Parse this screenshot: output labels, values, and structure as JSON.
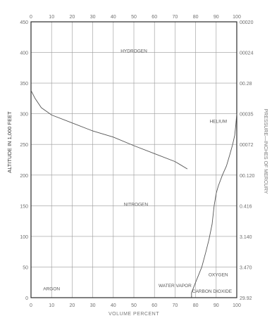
{
  "chart_data": {
    "type": "line",
    "xlabel": "VOLUME PERCENT",
    "ylabel": "ALTITUDE IN 1,000 FEET",
    "y2label": "PRESSURE—INCHES OF MERCURY",
    "xlim": [
      0,
      100
    ],
    "ylim": [
      0,
      450
    ],
    "x_ticks": [
      0,
      10,
      20,
      30,
      40,
      50,
      60,
      70,
      80,
      90,
      100
    ],
    "x_ticks_top": [
      0,
      10,
      20,
      30,
      40,
      50,
      60,
      70,
      80,
      90,
      100
    ],
    "y_ticks": [
      0,
      50,
      100,
      150,
      200,
      250,
      300,
      350,
      400,
      450
    ],
    "pressure_ticks": [
      {
        "altitude": 0,
        "label": "29.92"
      },
      {
        "altitude": 50,
        "label": "3.470"
      },
      {
        "altitude": 100,
        "label": "3.140"
      },
      {
        "altitude": 150,
        "label": "0.416"
      },
      {
        "altitude": 200,
        "label": "00.120"
      },
      {
        "altitude": 250,
        "label": "00072"
      },
      {
        "altitude": 300,
        "label": "00035"
      },
      {
        "altitude": 350,
        "label": "00.28"
      },
      {
        "altitude": 400,
        "label": "00024"
      },
      {
        "altitude": 450,
        "label": "00020"
      }
    ],
    "region_labels": [
      {
        "text": "HYDROGEN",
        "x": 50,
        "y": 400
      },
      {
        "text": "HELIUM",
        "x": 91,
        "y": 285
      },
      {
        "text": "NITROGEN",
        "x": 51,
        "y": 150
      },
      {
        "text": "OXYGEN",
        "x": 91,
        "y": 35
      },
      {
        "text": "ARGON",
        "x": 10,
        "y": 12
      },
      {
        "text": "WATER VAPOR",
        "x": 70,
        "y": 17
      },
      {
        "text": "CARBON DIOXIDE",
        "x": 88,
        "y": 8
      }
    ],
    "grid": true,
    "series": [
      {
        "boundary": "hydrogen-helium",
        "points": [
          [
            0,
            338
          ],
          [
            2,
            325
          ],
          [
            5,
            310
          ],
          [
            10,
            298
          ],
          [
            20,
            285
          ],
          [
            30,
            272
          ],
          [
            40,
            262
          ],
          [
            50,
            248
          ],
          [
            60,
            235
          ],
          [
            70,
            222
          ],
          [
            76,
            210
          ]
        ]
      },
      {
        "boundary": "helium-nitrogen",
        "points": [
          [
            100,
            300
          ],
          [
            99.5,
            280
          ],
          [
            99,
            265
          ],
          [
            98,
            250
          ],
          [
            96.5,
            232
          ],
          [
            95,
            215
          ],
          [
            93,
            200
          ],
          [
            91,
            182
          ],
          [
            90,
            170
          ],
          [
            89,
            150
          ]
        ]
      },
      {
        "boundary": "nitrogen-oxygen",
        "points": [
          [
            89,
            150
          ],
          [
            88,
            120
          ],
          [
            86.5,
            95
          ],
          [
            85,
            75
          ],
          [
            83,
            50
          ],
          [
            80,
            25
          ],
          [
            78,
            8
          ],
          [
            78,
            0
          ]
        ]
      },
      {
        "boundary": "oxygen-argon",
        "points": [
          [
            78,
            0
          ],
          [
            78,
            2
          ]
        ]
      }
    ]
  }
}
